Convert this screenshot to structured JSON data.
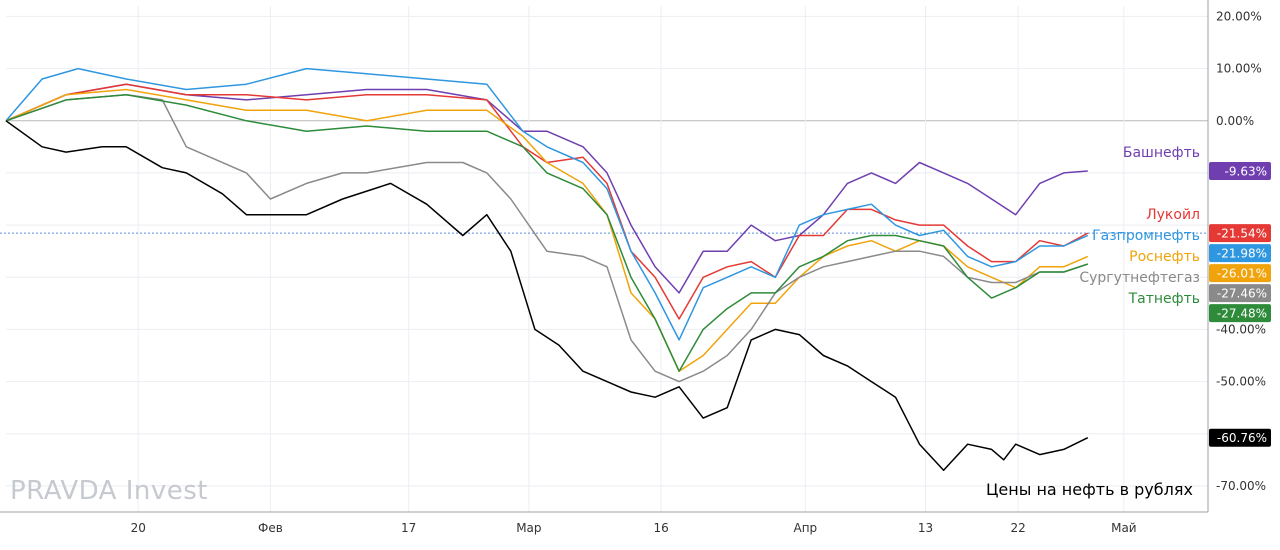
{
  "watermark": "PRAVDA Invest",
  "caption": "Цены на нефть в рублях",
  "chart_data": {
    "type": "line",
    "ylim": [
      -75,
      22
    ],
    "y_ticks": [
      20,
      10,
      0,
      -10,
      -20,
      -30,
      -40,
      -50,
      -60,
      -70
    ],
    "y_tick_labels": [
      "20.00%",
      "10.00%",
      "0.00%",
      "",
      "",
      "",
      "-40.00%",
      "-50.00%",
      "-60.00%",
      "-70.00%"
    ],
    "x_tick_labels": [
      {
        "label": "20",
        "t": 0.11
      },
      {
        "label": "Фев",
        "t": 0.22
      },
      {
        "label": "17",
        "t": 0.335
      },
      {
        "label": "Мар",
        "t": 0.435
      },
      {
        "label": "16",
        "t": 0.545
      },
      {
        "label": "Апр",
        "t": 0.665
      },
      {
        "label": "13",
        "t": 0.765
      },
      {
        "label": "22",
        "t": 0.842
      },
      {
        "label": "Май",
        "t": 0.93
      }
    ],
    "grid": true,
    "series": [
      {
        "name": "Башнефть",
        "color": "#6f3fb0",
        "last_label": "-9.63%",
        "x": [
          0,
          0.05,
          0.1,
          0.15,
          0.2,
          0.25,
          0.3,
          0.35,
          0.4,
          0.43,
          0.45,
          0.48,
          0.5,
          0.52,
          0.54,
          0.56,
          0.58,
          0.6,
          0.62,
          0.64,
          0.66,
          0.68,
          0.7,
          0.72,
          0.74,
          0.76,
          0.78,
          0.8,
          0.82,
          0.84,
          0.86,
          0.88,
          0.9
        ],
        "y": [
          0,
          5,
          7,
          5,
          4,
          5,
          6,
          6,
          4,
          -2,
          -2,
          -5,
          -10,
          -20,
          -28,
          -33,
          -25,
          -25,
          -20,
          -23,
          -22,
          -18,
          -12,
          -10,
          -12,
          -8,
          -10,
          -12,
          -15,
          -18,
          -12,
          -10,
          -9.63
        ]
      },
      {
        "name": "Лукойл",
        "color": "#e53935",
        "last_label": "-21.54%",
        "x": [
          0,
          0.05,
          0.1,
          0.15,
          0.2,
          0.25,
          0.3,
          0.35,
          0.4,
          0.43,
          0.45,
          0.48,
          0.5,
          0.52,
          0.54,
          0.56,
          0.58,
          0.6,
          0.62,
          0.64,
          0.66,
          0.68,
          0.7,
          0.72,
          0.74,
          0.76,
          0.78,
          0.8,
          0.82,
          0.84,
          0.86,
          0.88,
          0.9
        ],
        "y": [
          0,
          5,
          7,
          5,
          5,
          4,
          5,
          5,
          4,
          -5,
          -8,
          -7,
          -12,
          -25,
          -30,
          -38,
          -30,
          -28,
          -27,
          -30,
          -22,
          -22,
          -17,
          -17,
          -19,
          -20,
          -20,
          -24,
          -27,
          -27,
          -23,
          -24,
          -21.54
        ]
      },
      {
        "name": "Газпромнефть",
        "color": "#2f97e0",
        "last_label": "-21.98%",
        "x": [
          0,
          0.03,
          0.06,
          0.1,
          0.15,
          0.2,
          0.25,
          0.3,
          0.35,
          0.4,
          0.43,
          0.45,
          0.48,
          0.5,
          0.52,
          0.54,
          0.56,
          0.58,
          0.6,
          0.62,
          0.64,
          0.66,
          0.68,
          0.7,
          0.72,
          0.74,
          0.76,
          0.78,
          0.8,
          0.82,
          0.84,
          0.86,
          0.88,
          0.9
        ],
        "y": [
          0,
          8,
          10,
          8,
          6,
          7,
          10,
          9,
          8,
          7,
          -2,
          -5,
          -8,
          -13,
          -25,
          -33,
          -42,
          -32,
          -30,
          -28,
          -30,
          -20,
          -18,
          -17,
          -16,
          -20,
          -22,
          -21,
          -26,
          -28,
          -27,
          -24,
          -24,
          -21.98
        ]
      },
      {
        "name": "Роснефть",
        "color": "#f0a30a",
        "last_label": "-26.01%",
        "x": [
          0,
          0.05,
          0.1,
          0.15,
          0.2,
          0.25,
          0.3,
          0.35,
          0.4,
          0.43,
          0.45,
          0.48,
          0.5,
          0.52,
          0.54,
          0.56,
          0.58,
          0.6,
          0.62,
          0.64,
          0.66,
          0.68,
          0.7,
          0.72,
          0.74,
          0.76,
          0.78,
          0.8,
          0.82,
          0.84,
          0.86,
          0.88,
          0.9
        ],
        "y": [
          0,
          5,
          6,
          4,
          2,
          2,
          0,
          2,
          2,
          -3,
          -8,
          -12,
          -18,
          -33,
          -38,
          -48,
          -45,
          -40,
          -35,
          -35,
          -30,
          -26,
          -24,
          -23,
          -25,
          -23,
          -24,
          -28,
          -30,
          -32,
          -28,
          -28,
          -26.01
        ]
      },
      {
        "name": "Сургутнефтегаз",
        "color": "#8a8a8a",
        "last_label": "-27.46%",
        "x": [
          0,
          0.05,
          0.1,
          0.13,
          0.15,
          0.2,
          0.22,
          0.25,
          0.28,
          0.3,
          0.35,
          0.38,
          0.4,
          0.42,
          0.45,
          0.48,
          0.5,
          0.52,
          0.54,
          0.56,
          0.58,
          0.6,
          0.62,
          0.64,
          0.66,
          0.68,
          0.7,
          0.72,
          0.74,
          0.76,
          0.78,
          0.8,
          0.82,
          0.84,
          0.86,
          0.88,
          0.9
        ],
        "y": [
          0,
          4,
          5,
          4,
          -5,
          -10,
          -15,
          -12,
          -10,
          -10,
          -8,
          -8,
          -10,
          -15,
          -25,
          -26,
          -28,
          -42,
          -48,
          -50,
          -48,
          -45,
          -40,
          -33,
          -30,
          -28,
          -27,
          -26,
          -25,
          -25,
          -26,
          -30,
          -31,
          -31,
          -29,
          -29,
          -27.46
        ]
      },
      {
        "name": "Татнефть",
        "color": "#2e8b3a",
        "last_label": "-27.48%",
        "x": [
          0,
          0.05,
          0.1,
          0.15,
          0.2,
          0.25,
          0.3,
          0.35,
          0.4,
          0.43,
          0.45,
          0.48,
          0.5,
          0.52,
          0.54,
          0.56,
          0.58,
          0.6,
          0.62,
          0.64,
          0.66,
          0.68,
          0.7,
          0.72,
          0.74,
          0.76,
          0.78,
          0.8,
          0.82,
          0.84,
          0.86,
          0.88,
          0.9
        ],
        "y": [
          0,
          4,
          5,
          3,
          0,
          -2,
          -1,
          -2,
          -2,
          -5,
          -10,
          -13,
          -18,
          -30,
          -38,
          -48,
          -40,
          -36,
          -33,
          -33,
          -28,
          -26,
          -23,
          -22,
          -22,
          -23,
          -24,
          -30,
          -34,
          -32,
          -29,
          -29,
          -27.48
        ]
      },
      {
        "name": "",
        "color": "#000000",
        "last_label": "-60.76%",
        "x": [
          0,
          0.03,
          0.05,
          0.08,
          0.1,
          0.13,
          0.15,
          0.18,
          0.2,
          0.25,
          0.28,
          0.32,
          0.35,
          0.38,
          0.4,
          0.42,
          0.44,
          0.46,
          0.48,
          0.5,
          0.52,
          0.54,
          0.56,
          0.58,
          0.6,
          0.62,
          0.64,
          0.66,
          0.68,
          0.7,
          0.72,
          0.74,
          0.76,
          0.78,
          0.8,
          0.82,
          0.83,
          0.84,
          0.86,
          0.88,
          0.9
        ],
        "y": [
          0,
          -5,
          -6,
          -5,
          -5,
          -9,
          -10,
          -14,
          -18,
          -18,
          -15,
          -12,
          -16,
          -22,
          -18,
          -25,
          -40,
          -43,
          -48,
          -50,
          -52,
          -53,
          -51,
          -57,
          -55,
          -42,
          -40,
          -41,
          -45,
          -47,
          -50,
          -53,
          -62,
          -67,
          -62,
          -63,
          -65,
          -62,
          -64,
          -63,
          -60.76
        ]
      }
    ]
  }
}
